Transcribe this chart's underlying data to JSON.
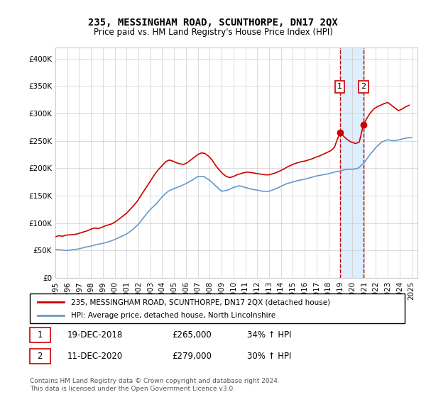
{
  "title": "235, MESSINGHAM ROAD, SCUNTHORPE, DN17 2QX",
  "subtitle": "Price paid vs. HM Land Registry's House Price Index (HPI)",
  "legend_line1": "235, MESSINGHAM ROAD, SCUNTHORPE, DN17 2QX (detached house)",
  "legend_line2": "HPI: Average price, detached house, North Lincolnshire",
  "annotation1_label": "1",
  "annotation1_date": "19-DEC-2018",
  "annotation1_price": "£265,000",
  "annotation1_hpi": "34% ↑ HPI",
  "annotation2_label": "2",
  "annotation2_date": "11-DEC-2020",
  "annotation2_price": "£279,000",
  "annotation2_hpi": "30% ↑ HPI",
  "footnote": "Contains HM Land Registry data © Crown copyright and database right 2024.\nThis data is licensed under the Open Government Licence v3.0.",
  "line1_color": "#cc0000",
  "line2_color": "#6699cc",
  "shaded_color": "#ddeeff",
  "annotation_box_color": "#cc0000",
  "ylim": [
    0,
    420000
  ],
  "yticks": [
    0,
    50000,
    100000,
    150000,
    200000,
    250000,
    300000,
    350000,
    400000
  ],
  "years": [
    1995,
    1996,
    1997,
    1998,
    1999,
    2000,
    2001,
    2002,
    2003,
    2004,
    2005,
    2006,
    2007,
    2008,
    2009,
    2010,
    2011,
    2012,
    2013,
    2014,
    2015,
    2016,
    2017,
    2018,
    2019,
    2020,
    2021,
    2022,
    2023,
    2024,
    2025
  ],
  "sale1_year": 2018.96,
  "sale1_value": 265000,
  "sale2_year": 2020.94,
  "sale2_value": 279000,
  "hpi_line": [
    [
      1995.0,
      52000
    ],
    [
      1995.5,
      51000
    ],
    [
      1996.0,
      50000
    ],
    [
      1996.5,
      51500
    ],
    [
      1997.0,
      53000
    ],
    [
      1997.5,
      56000
    ],
    [
      1998.0,
      58000
    ],
    [
      1998.5,
      61000
    ],
    [
      1999.0,
      63000
    ],
    [
      1999.5,
      66000
    ],
    [
      2000.0,
      70000
    ],
    [
      2000.5,
      75000
    ],
    [
      2001.0,
      80000
    ],
    [
      2001.5,
      88000
    ],
    [
      2002.0,
      98000
    ],
    [
      2002.5,
      112000
    ],
    [
      2003.0,
      125000
    ],
    [
      2003.5,
      135000
    ],
    [
      2004.0,
      148000
    ],
    [
      2004.5,
      158000
    ],
    [
      2005.0,
      163000
    ],
    [
      2005.5,
      167000
    ],
    [
      2006.0,
      172000
    ],
    [
      2006.5,
      178000
    ],
    [
      2007.0,
      185000
    ],
    [
      2007.5,
      185000
    ],
    [
      2008.0,
      178000
    ],
    [
      2008.5,
      168000
    ],
    [
      2009.0,
      158000
    ],
    [
      2009.5,
      160000
    ],
    [
      2010.0,
      165000
    ],
    [
      2010.5,
      168000
    ],
    [
      2011.0,
      165000
    ],
    [
      2011.5,
      162000
    ],
    [
      2012.0,
      160000
    ],
    [
      2012.5,
      158000
    ],
    [
      2013.0,
      158000
    ],
    [
      2013.5,
      162000
    ],
    [
      2014.0,
      167000
    ],
    [
      2014.5,
      172000
    ],
    [
      2015.0,
      175000
    ],
    [
      2015.5,
      178000
    ],
    [
      2016.0,
      180000
    ],
    [
      2016.5,
      183000
    ],
    [
      2017.0,
      186000
    ],
    [
      2017.5,
      188000
    ],
    [
      2018.0,
      190000
    ],
    [
      2018.5,
      193000
    ],
    [
      2019.0,
      195000
    ],
    [
      2019.5,
      198000
    ],
    [
      2020.0,
      198000
    ],
    [
      2020.5,
      200000
    ],
    [
      2021.0,
      210000
    ],
    [
      2021.5,
      225000
    ],
    [
      2022.0,
      238000
    ],
    [
      2022.5,
      248000
    ],
    [
      2023.0,
      252000
    ],
    [
      2023.5,
      250000
    ],
    [
      2024.0,
      252000
    ],
    [
      2024.5,
      255000
    ],
    [
      2025.0,
      256000
    ]
  ],
  "price_line": [
    [
      1995.0,
      75000
    ],
    [
      1995.3,
      77000
    ],
    [
      1995.6,
      76000
    ],
    [
      1995.9,
      78000
    ],
    [
      1996.2,
      78500
    ],
    [
      1996.5,
      79000
    ],
    [
      1996.8,
      80000
    ],
    [
      1997.1,
      82000
    ],
    [
      1997.4,
      84000
    ],
    [
      1997.7,
      86000
    ],
    [
      1998.0,
      89000
    ],
    [
      1998.3,
      91000
    ],
    [
      1998.6,
      90000
    ],
    [
      1998.9,
      92000
    ],
    [
      1999.2,
      95000
    ],
    [
      1999.5,
      97000
    ],
    [
      1999.8,
      99000
    ],
    [
      2000.1,
      103000
    ],
    [
      2000.4,
      108000
    ],
    [
      2000.7,
      113000
    ],
    [
      2001.0,
      118000
    ],
    [
      2001.3,
      125000
    ],
    [
      2001.6,
      132000
    ],
    [
      2001.9,
      140000
    ],
    [
      2002.2,
      150000
    ],
    [
      2002.5,
      160000
    ],
    [
      2002.8,
      170000
    ],
    [
      2003.1,
      180000
    ],
    [
      2003.4,
      190000
    ],
    [
      2003.7,
      198000
    ],
    [
      2004.0,
      205000
    ],
    [
      2004.3,
      212000
    ],
    [
      2004.6,
      215000
    ],
    [
      2004.9,
      213000
    ],
    [
      2005.2,
      210000
    ],
    [
      2005.5,
      208000
    ],
    [
      2005.8,
      207000
    ],
    [
      2006.1,
      210000
    ],
    [
      2006.4,
      215000
    ],
    [
      2006.7,
      220000
    ],
    [
      2007.0,
      225000
    ],
    [
      2007.3,
      228000
    ],
    [
      2007.6,
      227000
    ],
    [
      2007.9,
      222000
    ],
    [
      2008.2,
      215000
    ],
    [
      2008.5,
      205000
    ],
    [
      2008.8,
      197000
    ],
    [
      2009.1,
      190000
    ],
    [
      2009.4,
      185000
    ],
    [
      2009.7,
      183000
    ],
    [
      2010.0,
      185000
    ],
    [
      2010.3,
      188000
    ],
    [
      2010.6,
      190000
    ],
    [
      2010.9,
      192000
    ],
    [
      2011.2,
      193000
    ],
    [
      2011.5,
      192000
    ],
    [
      2011.8,
      191000
    ],
    [
      2012.1,
      190000
    ],
    [
      2012.4,
      189000
    ],
    [
      2012.7,
      188000
    ],
    [
      2013.0,
      188000
    ],
    [
      2013.3,
      190000
    ],
    [
      2013.6,
      192000
    ],
    [
      2013.9,
      195000
    ],
    [
      2014.2,
      198000
    ],
    [
      2014.5,
      202000
    ],
    [
      2014.8,
      205000
    ],
    [
      2015.1,
      208000
    ],
    [
      2015.4,
      210000
    ],
    [
      2015.7,
      212000
    ],
    [
      2016.0,
      213000
    ],
    [
      2016.3,
      215000
    ],
    [
      2016.6,
      217000
    ],
    [
      2016.9,
      220000
    ],
    [
      2017.2,
      222000
    ],
    [
      2017.5,
      225000
    ],
    [
      2017.8,
      228000
    ],
    [
      2018.2,
      232000
    ],
    [
      2018.5,
      238000
    ],
    [
      2018.96,
      265000
    ],
    [
      2019.3,
      258000
    ],
    [
      2019.6,
      252000
    ],
    [
      2019.9,
      248000
    ],
    [
      2020.3,
      245000
    ],
    [
      2020.6,
      248000
    ],
    [
      2020.94,
      279000
    ],
    [
      2021.2,
      290000
    ],
    [
      2021.5,
      300000
    ],
    [
      2021.8,
      308000
    ],
    [
      2022.1,
      312000
    ],
    [
      2022.4,
      315000
    ],
    [
      2022.7,
      318000
    ],
    [
      2023.0,
      320000
    ],
    [
      2023.3,
      315000
    ],
    [
      2023.6,
      310000
    ],
    [
      2023.9,
      305000
    ],
    [
      2024.2,
      308000
    ],
    [
      2024.5,
      312000
    ],
    [
      2024.8,
      315000
    ]
  ]
}
